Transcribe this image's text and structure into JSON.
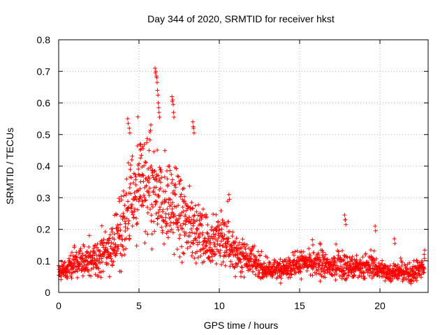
{
  "chart_data": {
    "type": "scatter",
    "title": "Day 344 of 2020, SRMTID for receiver hkst",
    "xlabel": "GPS time / hours",
    "ylabel": "SRMTID / TECUs",
    "xlim": [
      0,
      23
    ],
    "ylim": [
      0,
      0.8
    ],
    "grid": true,
    "marker": "+",
    "color": "#ff0000",
    "x_ticks": [
      0,
      5,
      10,
      15,
      20
    ],
    "y_ticks": [
      0,
      0.1,
      0.2,
      0.3,
      0.4,
      0.5,
      0.6,
      0.7,
      0.8
    ],
    "x_tick_labels": [
      "0",
      "5",
      "10",
      "15",
      "20"
    ],
    "y_tick_labels": [
      "0",
      "0.1",
      "0.2",
      "0.3",
      "0.4",
      "0.5",
      "0.6",
      "0.7",
      "0.8"
    ],
    "profile": {
      "description": "approximate median SRMTID and spread vs GPS hour, sampled every 0.5 h",
      "hours": [
        0.0,
        0.5,
        1.0,
        1.5,
        2.0,
        2.5,
        3.0,
        3.5,
        4.0,
        4.5,
        5.0,
        5.5,
        6.0,
        6.5,
        7.0,
        7.5,
        8.0,
        8.5,
        9.0,
        9.5,
        10.0,
        10.5,
        11.0,
        11.5,
        12.0,
        12.5,
        13.0,
        13.5,
        14.0,
        14.5,
        15.0,
        15.5,
        16.0,
        16.5,
        17.0,
        17.5,
        18.0,
        18.5,
        19.0,
        19.5,
        20.0,
        20.5,
        21.0,
        21.5,
        22.0,
        22.5,
        22.8
      ],
      "median": [
        0.065,
        0.07,
        0.09,
        0.1,
        0.1,
        0.11,
        0.13,
        0.15,
        0.2,
        0.3,
        0.33,
        0.32,
        0.3,
        0.27,
        0.28,
        0.24,
        0.22,
        0.2,
        0.17,
        0.15,
        0.17,
        0.15,
        0.12,
        0.12,
        0.1,
        0.08,
        0.07,
        0.07,
        0.08,
        0.08,
        0.09,
        0.09,
        0.09,
        0.085,
        0.08,
        0.09,
        0.08,
        0.075,
        0.075,
        0.085,
        0.07,
        0.065,
        0.065,
        0.06,
        0.06,
        0.07,
        0.08
      ],
      "spread": [
        0.02,
        0.025,
        0.04,
        0.04,
        0.045,
        0.05,
        0.05,
        0.06,
        0.12,
        0.13,
        0.14,
        0.14,
        0.16,
        0.13,
        0.12,
        0.11,
        0.1,
        0.08,
        0.07,
        0.06,
        0.07,
        0.06,
        0.05,
        0.05,
        0.04,
        0.03,
        0.025,
        0.025,
        0.03,
        0.03,
        0.035,
        0.035,
        0.04,
        0.035,
        0.03,
        0.04,
        0.035,
        0.03,
        0.03,
        0.035,
        0.03,
        0.025,
        0.025,
        0.025,
        0.025,
        0.03,
        0.03
      ]
    },
    "outliers": [
      {
        "x": 4.3,
        "y": 0.55
      },
      {
        "x": 4.4,
        "y": 0.52
      },
      {
        "x": 5.1,
        "y": 0.47
      },
      {
        "x": 6.0,
        "y": 0.71
      },
      {
        "x": 6.05,
        "y": 0.7
      },
      {
        "x": 6.1,
        "y": 0.68
      },
      {
        "x": 6.15,
        "y": 0.64
      },
      {
        "x": 6.2,
        "y": 0.6
      },
      {
        "x": 6.25,
        "y": 0.57
      },
      {
        "x": 7.05,
        "y": 0.62
      },
      {
        "x": 7.1,
        "y": 0.61
      },
      {
        "x": 7.15,
        "y": 0.57
      },
      {
        "x": 8.35,
        "y": 0.54
      },
      {
        "x": 8.4,
        "y": 0.52
      },
      {
        "x": 10.6,
        "y": 0.31
      },
      {
        "x": 17.8,
        "y": 0.245
      },
      {
        "x": 17.85,
        "y": 0.23
      },
      {
        "x": 19.7,
        "y": 0.21
      },
      {
        "x": 20.9,
        "y": 0.17
      }
    ]
  }
}
